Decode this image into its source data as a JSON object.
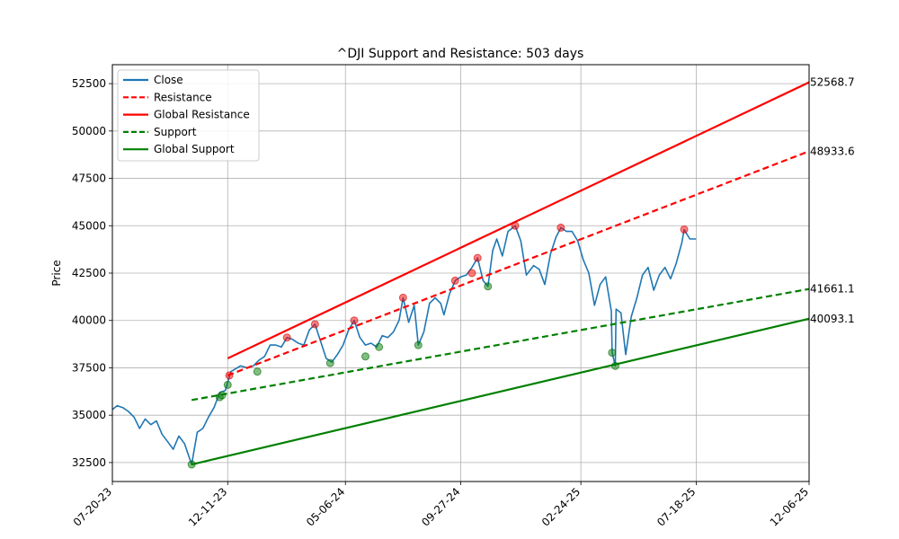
{
  "chart_data": {
    "type": "line",
    "title": "^DJI Support and Resistance: 503 days",
    "ylabel": "Price",
    "xlabel": "",
    "ylim": [
      31500,
      53500
    ],
    "xlim": [
      "2023-07-20",
      "2025-12-06"
    ],
    "y_ticks": [
      32500,
      35000,
      37500,
      40000,
      42500,
      45000,
      47500,
      50000,
      52500
    ],
    "x_tick_dates": [
      "2023-07-20",
      "2023-12-11",
      "2024-05-06",
      "2024-09-27",
      "2025-02-24",
      "2025-07-18",
      "2025-12-06"
    ],
    "x_tick_labels": [
      "07-20-23",
      "12-11-23",
      "05-06-24",
      "09-27-24",
      "02-24-25",
      "07-18-25",
      "12-06-25"
    ],
    "grid": true,
    "legend_position": "top-left",
    "legend": [
      {
        "label": "Close",
        "color": "#1f77b4",
        "style": "solid"
      },
      {
        "label": "Resistance",
        "color": "#ff0000",
        "style": "dashed"
      },
      {
        "label": "Global Resistance",
        "color": "#ff0000",
        "style": "solid"
      },
      {
        "label": "Support",
        "color": "#008000",
        "style": "dashed"
      },
      {
        "label": "Global Support",
        "color": "#008000",
        "style": "solid"
      }
    ],
    "close": [
      [
        "2023-07-20",
        35300
      ],
      [
        "2023-07-26",
        35500
      ],
      [
        "2023-08-02",
        35400
      ],
      [
        "2023-08-09",
        35200
      ],
      [
        "2023-08-16",
        34900
      ],
      [
        "2023-08-23",
        34300
      ],
      [
        "2023-08-30",
        34800
      ],
      [
        "2023-09-06",
        34500
      ],
      [
        "2023-09-13",
        34700
      ],
      [
        "2023-09-20",
        34000
      ],
      [
        "2023-09-27",
        33600
      ],
      [
        "2023-10-04",
        33200
      ],
      [
        "2023-10-11",
        33900
      ],
      [
        "2023-10-18",
        33500
      ],
      [
        "2023-10-27",
        32400
      ],
      [
        "2023-11-03",
        34100
      ],
      [
        "2023-11-10",
        34300
      ],
      [
        "2023-11-17",
        34900
      ],
      [
        "2023-11-24",
        35400
      ],
      [
        "2023-12-01",
        36200
      ],
      [
        "2023-12-08",
        36300
      ],
      [
        "2023-12-15",
        37300
      ],
      [
        "2023-12-27",
        37600
      ],
      [
        "2024-01-05",
        37500
      ],
      [
        "2024-01-12",
        37600
      ],
      [
        "2024-01-19",
        37900
      ],
      [
        "2024-01-26",
        38100
      ],
      [
        "2024-02-02",
        38700
      ],
      [
        "2024-02-09",
        38700
      ],
      [
        "2024-02-16",
        38600
      ],
      [
        "2024-02-23",
        39100
      ],
      [
        "2024-03-01",
        39000
      ],
      [
        "2024-03-08",
        38800
      ],
      [
        "2024-03-15",
        38700
      ],
      [
        "2024-03-22",
        39500
      ],
      [
        "2024-03-29",
        39800
      ],
      [
        "2024-04-05",
        38900
      ],
      [
        "2024-04-12",
        38000
      ],
      [
        "2024-04-19",
        37800
      ],
      [
        "2024-04-26",
        38200
      ],
      [
        "2024-05-03",
        38700
      ],
      [
        "2024-05-10",
        39500
      ],
      [
        "2024-05-17",
        40000
      ],
      [
        "2024-05-24",
        39100
      ],
      [
        "2024-05-31",
        38700
      ],
      [
        "2024-06-07",
        38800
      ],
      [
        "2024-06-14",
        38600
      ],
      [
        "2024-06-21",
        39200
      ],
      [
        "2024-06-28",
        39100
      ],
      [
        "2024-07-05",
        39400
      ],
      [
        "2024-07-12",
        40000
      ],
      [
        "2024-07-17",
        41200
      ],
      [
        "2024-07-24",
        39900
      ],
      [
        "2024-07-31",
        40800
      ],
      [
        "2024-08-05",
        38700
      ],
      [
        "2024-08-12",
        39400
      ],
      [
        "2024-08-19",
        40900
      ],
      [
        "2024-08-26",
        41200
      ],
      [
        "2024-09-02",
        40900
      ],
      [
        "2024-09-06",
        40300
      ],
      [
        "2024-09-13",
        41400
      ],
      [
        "2024-09-20",
        42100
      ],
      [
        "2024-09-27",
        42300
      ],
      [
        "2024-10-04",
        42400
      ],
      [
        "2024-10-11",
        42800
      ],
      [
        "2024-10-18",
        43300
      ],
      [
        "2024-10-25",
        42100
      ],
      [
        "2024-10-31",
        41800
      ],
      [
        "2024-11-06",
        43700
      ],
      [
        "2024-11-11",
        44300
      ],
      [
        "2024-11-18",
        43400
      ],
      [
        "2024-11-25",
        44700
      ],
      [
        "2024-12-04",
        45000
      ],
      [
        "2024-12-11",
        44200
      ],
      [
        "2024-12-18",
        42400
      ],
      [
        "2024-12-27",
        42900
      ],
      [
        "2025-01-03",
        42700
      ],
      [
        "2025-01-10",
        41900
      ],
      [
        "2025-01-17",
        43500
      ],
      [
        "2025-01-24",
        44400
      ],
      [
        "2025-01-30",
        44900
      ],
      [
        "2025-02-06",
        44700
      ],
      [
        "2025-02-13",
        44700
      ],
      [
        "2025-02-20",
        44200
      ],
      [
        "2025-02-27",
        43200
      ],
      [
        "2025-03-06",
        42500
      ],
      [
        "2025-03-13",
        40800
      ],
      [
        "2025-03-20",
        41900
      ],
      [
        "2025-03-27",
        42300
      ],
      [
        "2025-04-03",
        40500
      ],
      [
        "2025-04-04",
        38300
      ],
      [
        "2025-04-08",
        37600
      ],
      [
        "2025-04-09",
        40600
      ],
      [
        "2025-04-15",
        40400
      ],
      [
        "2025-04-21",
        38200
      ],
      [
        "2025-04-28",
        40200
      ],
      [
        "2025-05-05",
        41200
      ],
      [
        "2025-05-12",
        42400
      ],
      [
        "2025-05-19",
        42800
      ],
      [
        "2025-05-26",
        41600
      ],
      [
        "2025-06-02",
        42400
      ],
      [
        "2025-06-09",
        42800
      ],
      [
        "2025-06-16",
        42200
      ],
      [
        "2025-06-23",
        43000
      ],
      [
        "2025-06-30",
        44100
      ],
      [
        "2025-07-03",
        44800
      ],
      [
        "2025-07-10",
        44300
      ],
      [
        "2025-07-18",
        44300
      ]
    ],
    "resistance_points": [
      [
        "2023-12-13",
        37100
      ],
      [
        "2024-02-23",
        39100
      ],
      [
        "2024-03-29",
        39800
      ],
      [
        "2024-05-17",
        40000
      ],
      [
        "2024-07-17",
        41200
      ],
      [
        "2024-09-20",
        42100
      ],
      [
        "2024-10-11",
        42500
      ],
      [
        "2024-10-18",
        43300
      ],
      [
        "2024-12-04",
        45000
      ],
      [
        "2025-01-30",
        44900
      ],
      [
        "2025-07-03",
        44800
      ]
    ],
    "support_points": [
      [
        "2023-10-27",
        32400
      ],
      [
        "2023-12-01",
        35950
      ],
      [
        "2023-12-04",
        36050
      ],
      [
        "2023-12-11",
        36600
      ],
      [
        "2024-01-17",
        37300
      ],
      [
        "2024-04-17",
        37750
      ],
      [
        "2024-05-31",
        38100
      ],
      [
        "2024-06-17",
        38600
      ],
      [
        "2024-08-05",
        38700
      ],
      [
        "2024-10-31",
        41800
      ],
      [
        "2025-04-04",
        38300
      ],
      [
        "2025-04-08",
        37600
      ]
    ],
    "lines": {
      "resistance": {
        "start": [
          "2023-12-11",
          37100
        ],
        "end": [
          "2025-12-06",
          48933.6
        ],
        "end_label": "48933.6"
      },
      "global_resistance": {
        "start": [
          "2023-12-11",
          38000
        ],
        "end": [
          "2025-12-06",
          52568.7
        ],
        "end_label": "52568.7"
      },
      "support": {
        "start": [
          "2023-10-27",
          35800
        ],
        "end": [
          "2025-12-06",
          41661.1
        ],
        "end_label": "41661.1"
      },
      "global_support": {
        "start": [
          "2023-10-27",
          32400
        ],
        "end": [
          "2025-12-06",
          40093.1
        ],
        "end_label": "40093.1"
      }
    }
  }
}
